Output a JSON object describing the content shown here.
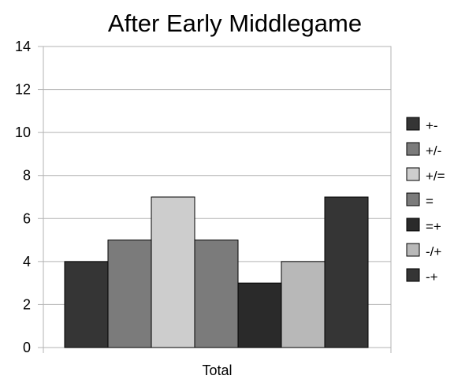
{
  "chart_data": {
    "type": "bar",
    "title": "After Early Middlegame",
    "categories": [
      "Total"
    ],
    "xlabel": "",
    "ylabel": "",
    "ylim": [
      0,
      14
    ],
    "yticks": [
      0,
      2,
      4,
      6,
      8,
      10,
      12,
      14
    ],
    "grid": true,
    "legend_position": "right",
    "series": [
      {
        "name": "+-",
        "values": [
          4
        ],
        "color": "#353535"
      },
      {
        "name": "+/-",
        "values": [
          5
        ],
        "color": "#7b7b7b"
      },
      {
        "name": "+/=",
        "values": [
          7
        ],
        "color": "#cdcdcd"
      },
      {
        "name": "=",
        "values": [
          5
        ],
        "color": "#7b7b7b"
      },
      {
        "name": "=+",
        "values": [
          3
        ],
        "color": "#2a2a2a"
      },
      {
        "name": "-/+",
        "values": [
          4
        ],
        "color": "#b8b8b8"
      },
      {
        "name": "-+",
        "values": [
          7
        ],
        "color": "#353535"
      }
    ]
  }
}
